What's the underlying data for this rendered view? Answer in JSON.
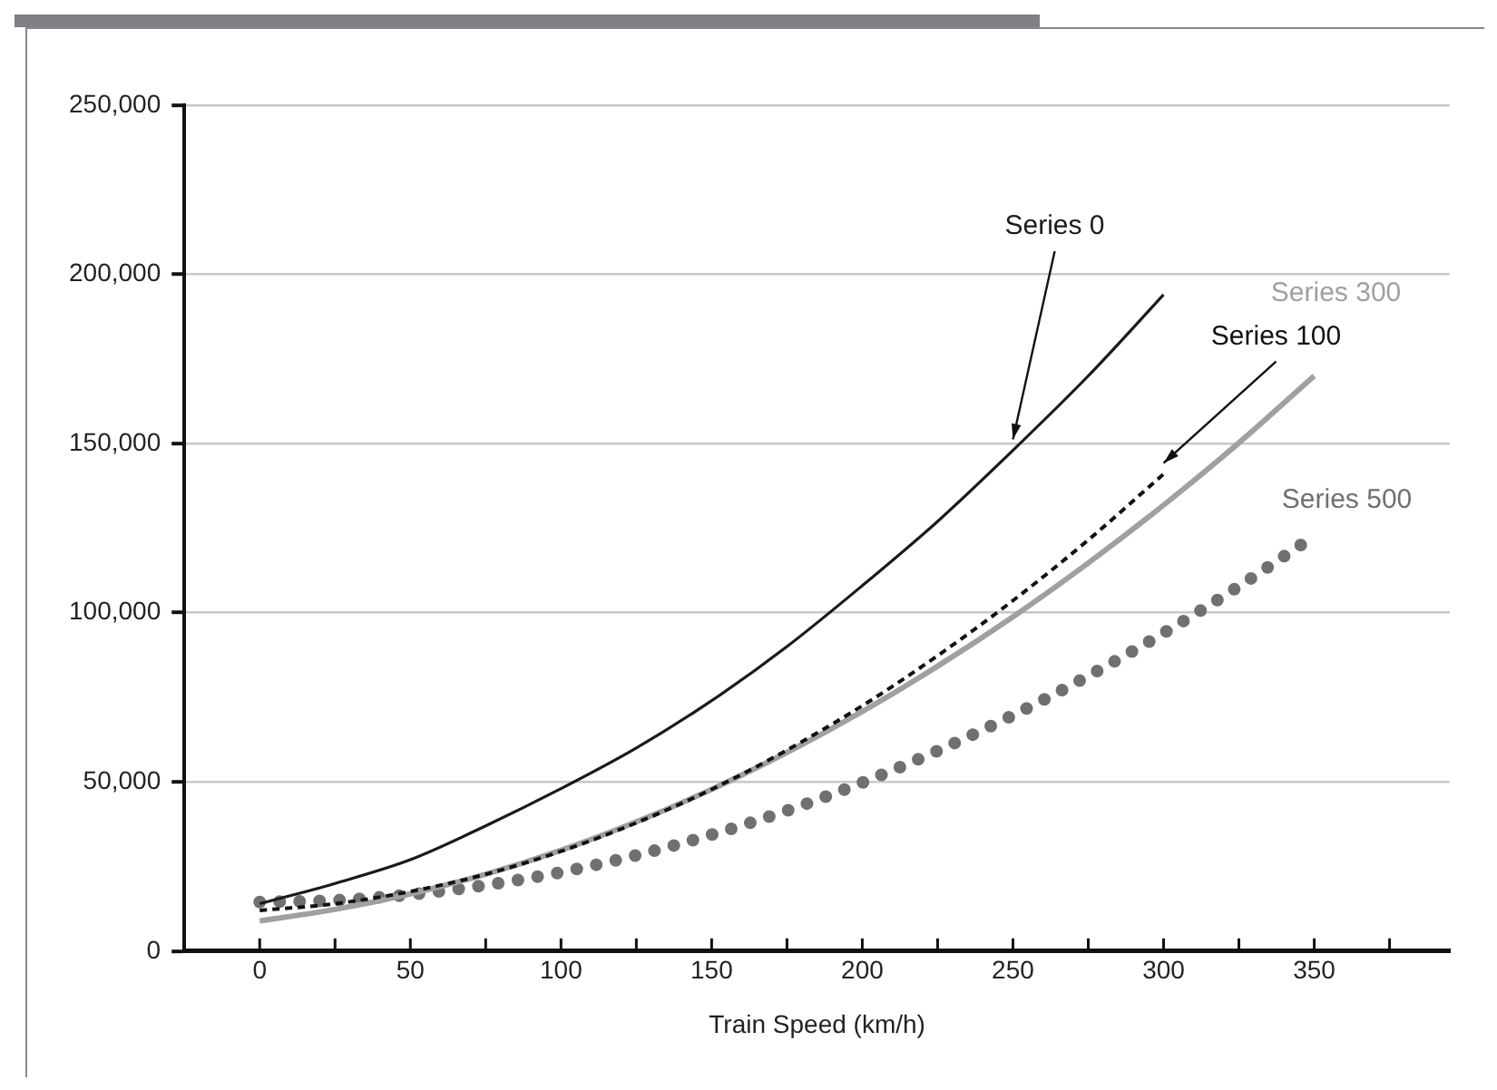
{
  "chart_data": {
    "type": "line",
    "xlabel": "Train Speed (km/h)",
    "xlim": [
      -25,
      395
    ],
    "xticks": [
      0,
      {
        "value": 25,
        "label": null
      },
      50,
      {
        "value": 75,
        "label": null
      },
      100,
      {
        "value": 125,
        "label": null
      },
      150,
      {
        "value": 175,
        "label": null
      },
      200,
      {
        "value": 225,
        "label": null
      },
      250,
      {
        "value": 275,
        "label": null
      },
      300,
      {
        "value": 325,
        "label": null
      },
      350,
      {
        "value": 375,
        "label": null
      }
    ],
    "ylim": [
      0,
      250000
    ],
    "yticks": [
      0,
      {
        "value": 50000,
        "label": "50,000"
      },
      {
        "value": 100000,
        "label": "100,000"
      },
      {
        "value": 150000,
        "label": "150,000"
      },
      {
        "value": 200000,
        "label": "200,000"
      },
      {
        "value": 250000,
        "label": "250,000"
      }
    ],
    "grid": "y",
    "legend": false,
    "marker": "none",
    "series": [
      {
        "name": "Series 0",
        "color": "#1a1a1a",
        "line_style": "solid",
        "x": [
          0,
          25,
          50,
          75,
          100,
          125,
          150,
          175,
          200,
          225,
          250,
          275,
          300
        ],
        "values": [
          14000,
          20000,
          27000,
          37000,
          48000,
          60000,
          74000,
          90000,
          108000,
          127000,
          148000,
          170000,
          194000
        ]
      },
      {
        "name": "Series 100",
        "color": "#111111",
        "line_style": "dashed",
        "x": [
          0,
          25,
          50,
          75,
          100,
          125,
          150,
          175,
          200,
          225,
          250,
          275,
          300
        ],
        "values": [
          12000,
          14000,
          17600,
          22700,
          29500,
          37900,
          47800,
          59400,
          72500,
          87300,
          103600,
          121500,
          141000
        ]
      },
      {
        "name": "Series 300",
        "color": "#a0a0a0",
        "line_style": "solid",
        "x": [
          0,
          25,
          50,
          75,
          100,
          125,
          150,
          175,
          200,
          225,
          250,
          275,
          300,
          325,
          350
        ],
        "values": [
          8900,
          12300,
          16900,
          22700,
          29800,
          38200,
          47800,
          58700,
          70800,
          84200,
          98800,
          114700,
          131800,
          150200,
          170000
        ]
      },
      {
        "name": "Series 500",
        "color": "#707070",
        "line_style": "dotted",
        "x": [
          0,
          25,
          50,
          75,
          100,
          125,
          150,
          175,
          200,
          225,
          250,
          275,
          300,
          325,
          350
        ],
        "values": [
          14500,
          15000,
          16700,
          19500,
          23300,
          28300,
          34400,
          41500,
          49800,
          59200,
          69700,
          81300,
          94000,
          107800,
          122700
        ]
      }
    ]
  }
}
